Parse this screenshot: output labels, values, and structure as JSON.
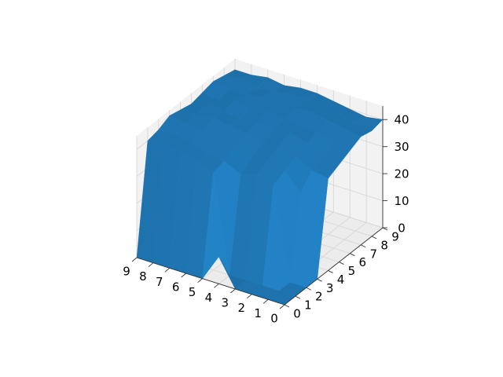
{
  "chart_data": {
    "type": "surface3d",
    "title": "",
    "xlabel": "",
    "ylabel": "",
    "zlabel": "",
    "x_ticks": [
      "0",
      "1",
      "2",
      "3",
      "4",
      "5",
      "6",
      "7",
      "8",
      "9"
    ],
    "y_ticks": [
      "0",
      "1",
      "2",
      "3",
      "4",
      "5",
      "6",
      "7",
      "8",
      "9"
    ],
    "z_ticks": [
      "0",
      "10",
      "20",
      "30",
      "40"
    ],
    "xlim": [
      0,
      9
    ],
    "ylim": [
      0,
      9
    ],
    "zlim": [
      0,
      45
    ],
    "grid": true,
    "legend": "none",
    "surface_color": "#1f77b4",
    "x": [
      0,
      1,
      2,
      3,
      4,
      5,
      6,
      7,
      8,
      9
    ],
    "y": [
      0,
      1,
      2,
      3,
      4,
      5,
      6,
      7,
      8,
      9
    ],
    "z": [
      [
        0,
        0,
        0,
        0,
        34,
        36,
        38,
        40,
        39,
        40
      ],
      [
        0,
        0,
        0,
        30,
        35,
        37,
        39,
        41,
        40,
        39
      ],
      [
        0,
        0,
        34,
        36,
        38,
        40,
        41,
        42,
        41,
        40
      ],
      [
        0,
        0,
        36,
        38,
        40,
        42,
        41,
        43,
        42,
        41
      ],
      [
        10,
        0,
        34,
        37,
        39,
        41,
        42,
        43,
        43,
        42
      ],
      [
        0,
        36,
        37,
        39,
        41,
        42,
        43,
        42,
        43,
        42
      ],
      [
        0,
        38,
        38,
        40,
        42,
        41,
        42,
        43,
        42,
        41
      ],
      [
        0,
        40,
        40,
        41,
        43,
        42,
        43,
        42,
        41,
        42
      ],
      [
        0,
        41,
        41,
        42,
        42,
        43,
        41,
        42,
        43,
        41
      ],
      [
        0,
        40,
        41,
        43,
        42,
        41,
        42,
        43,
        42,
        41
      ]
    ]
  }
}
